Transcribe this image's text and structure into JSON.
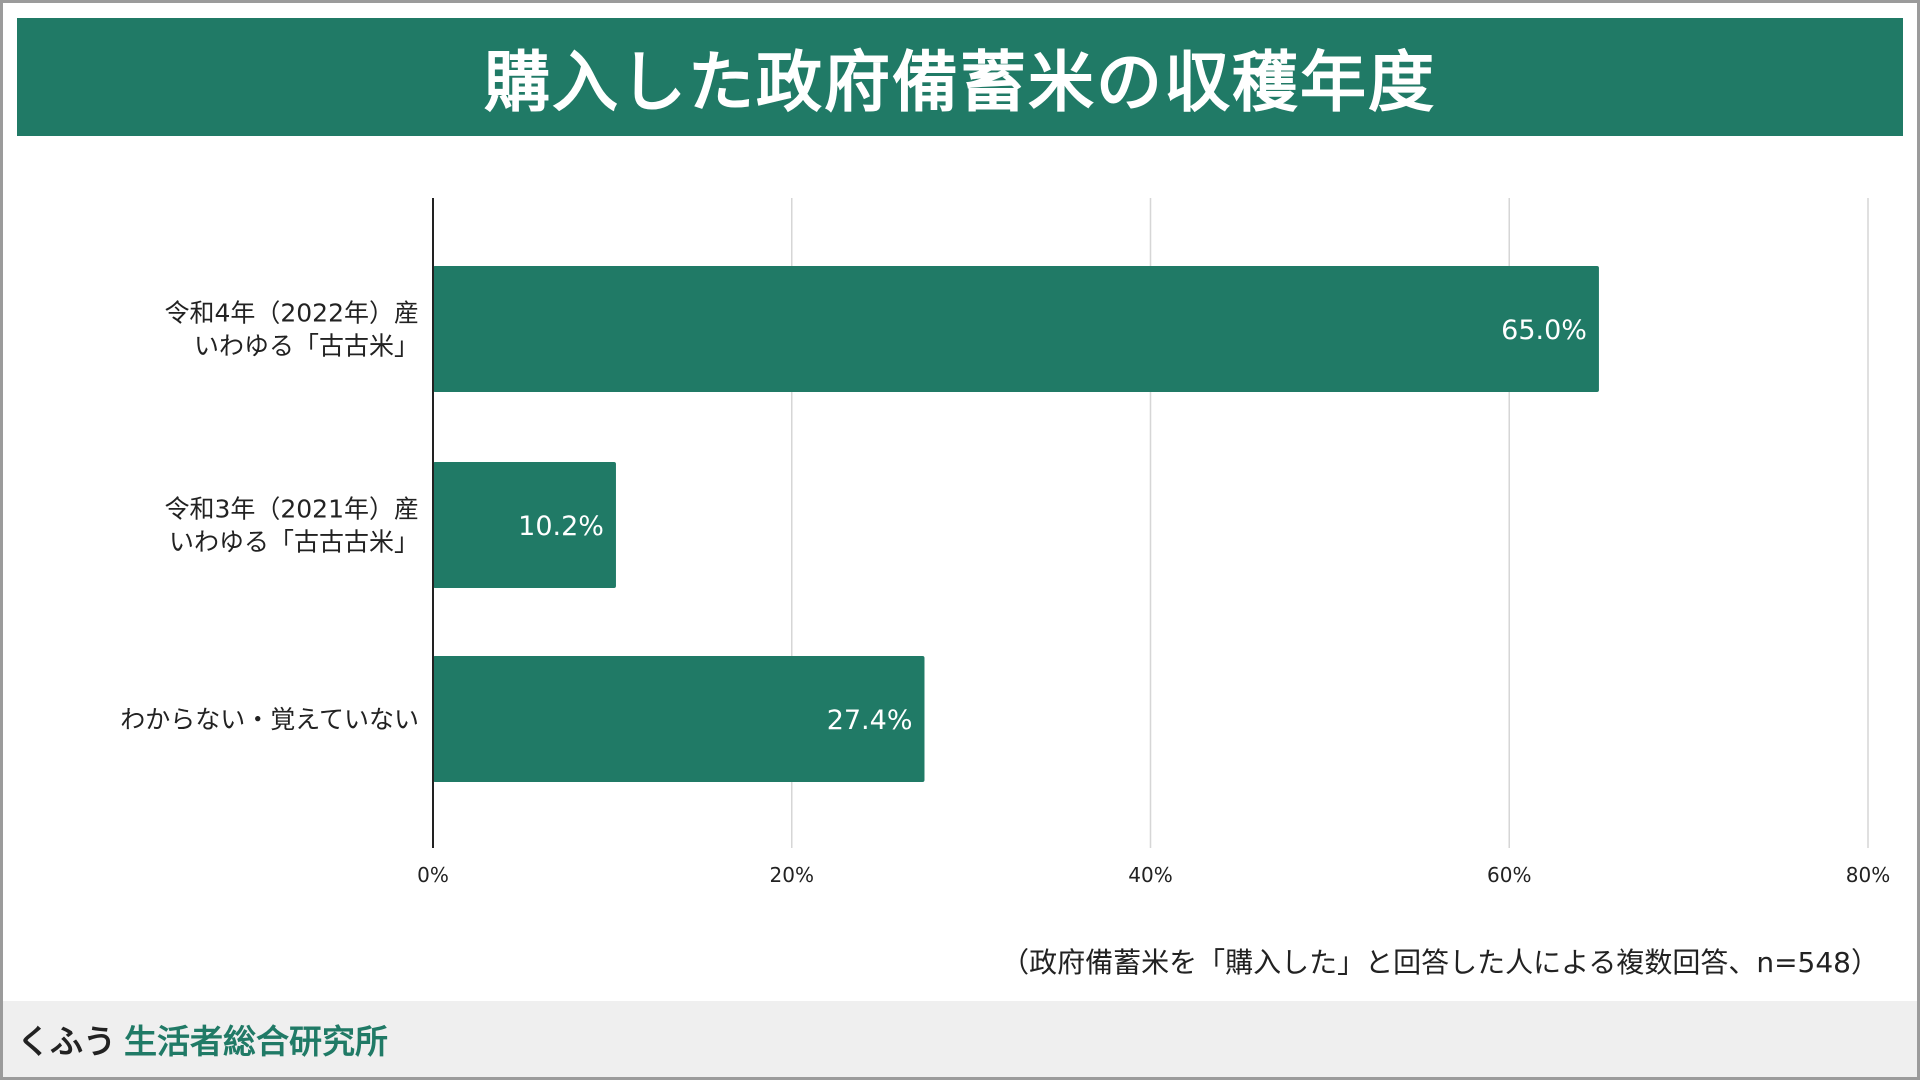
{
  "title": "購入した政府備蓄米の収穫年度",
  "note": "（政府備蓄米を「購入した」と回答した人による複数回答、n=548）",
  "footer": {
    "brand_part1": "くふう",
    "brand_part2": "生活者総合研究所"
  },
  "colors": {
    "accent": "#207a66",
    "bar": "#207a66",
    "grid": "#d6d6d6",
    "footer_bg": "#efefef"
  },
  "chart_data": {
    "type": "bar",
    "orientation": "horizontal",
    "categories": [
      [
        "令和4年（2022年）産",
        "いわゆる「古古米」"
      ],
      [
        "令和3年（2021年）産",
        "いわゆる「古古古米」"
      ],
      [
        "わからない・覚えていない"
      ]
    ],
    "values": [
      65.0,
      10.2,
      27.4
    ],
    "value_labels": [
      "65.0%",
      "10.2%",
      "27.4%"
    ],
    "xlim": [
      0,
      80
    ],
    "xticks": [
      0,
      20,
      40,
      60,
      80
    ],
    "xtick_labels": [
      "0%",
      "20%",
      "40%",
      "60%",
      "80%"
    ],
    "grid": true
  }
}
